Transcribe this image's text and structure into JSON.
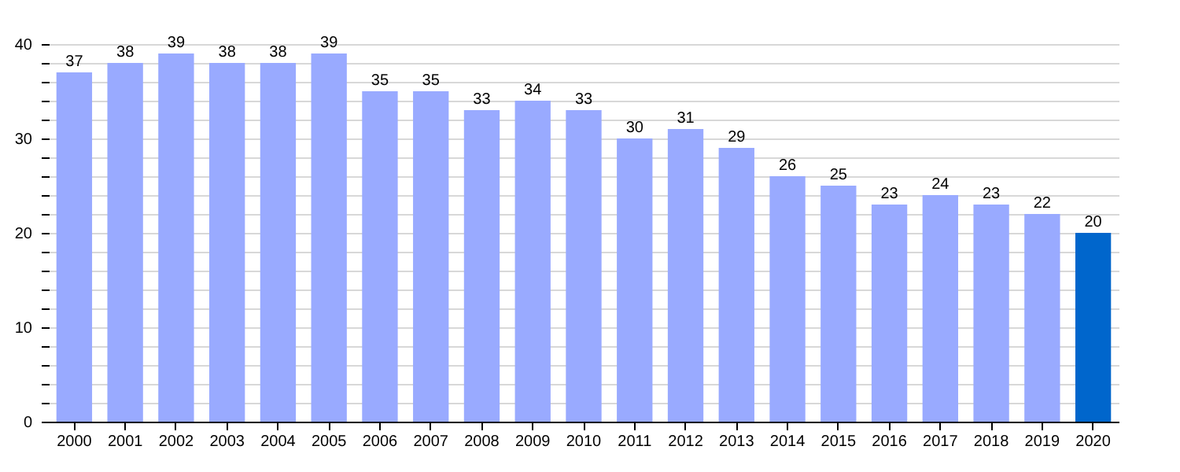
{
  "chart_data": {
    "type": "bar",
    "categories": [
      "2000",
      "2001",
      "2002",
      "2003",
      "2004",
      "2005",
      "2006",
      "2007",
      "2008",
      "2009",
      "2010",
      "2011",
      "2012",
      "2013",
      "2014",
      "2015",
      "2016",
      "2017",
      "2018",
      "2019",
      "2020"
    ],
    "values": [
      37,
      38,
      39,
      38,
      38,
      39,
      35,
      35,
      33,
      34,
      33,
      30,
      31,
      29,
      26,
      25,
      23,
      24,
      23,
      22,
      20
    ],
    "colors": [
      "#99aaff",
      "#99aaff",
      "#99aaff",
      "#99aaff",
      "#99aaff",
      "#99aaff",
      "#99aaff",
      "#99aaff",
      "#99aaff",
      "#99aaff",
      "#99aaff",
      "#99aaff",
      "#99aaff",
      "#99aaff",
      "#99aaff",
      "#99aaff",
      "#99aaff",
      "#99aaff",
      "#99aaff",
      "#99aaff",
      "#0066cc"
    ],
    "ylim": [
      0,
      40
    ],
    "yticks": [
      0,
      {
        "value": 2,
        "label": null
      },
      {
        "value": 4,
        "label": null
      },
      {
        "value": 6,
        "label": null
      },
      {
        "value": 8,
        "label": null
      },
      10,
      {
        "value": 12,
        "label": null
      },
      {
        "value": 14,
        "label": null
      },
      {
        "value": 16,
        "label": null
      },
      {
        "value": 18,
        "label": null
      },
      20,
      {
        "value": 22,
        "label": null
      },
      {
        "value": 24,
        "label": null
      },
      {
        "value": 26,
        "label": null
      },
      {
        "value": 28,
        "label": null
      },
      30,
      {
        "value": 32,
        "label": null
      },
      {
        "value": 34,
        "label": null
      },
      {
        "value": 36,
        "label": null
      },
      {
        "value": 38,
        "label": null
      },
      40
    ],
    "grid": "y",
    "data_labels": true
  }
}
